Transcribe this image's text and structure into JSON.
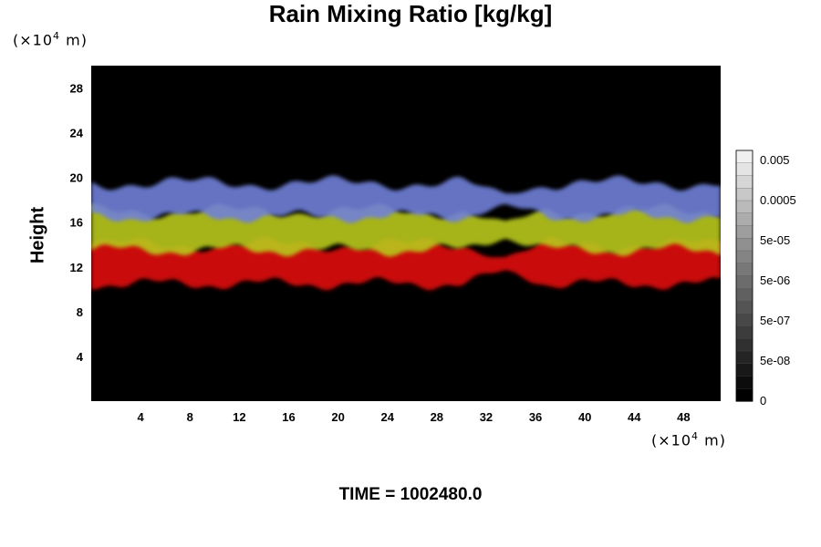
{
  "title": "Rain Mixing Ratio [kg/kg]",
  "y_unit": {
    "prefix": "(×10",
    "exp": "4",
    "suffix": " m)"
  },
  "x_unit": {
    "prefix": "(×10",
    "exp": "4",
    "suffix": " m)"
  },
  "ylabel": "Height",
  "time_label": "TIME = 1002480.0",
  "chart_data": {
    "type": "heatmap",
    "title": "Rain Mixing Ratio [kg/kg]",
    "xlabel": "",
    "ylabel": "Height",
    "x_unit": "×10^4 m",
    "y_unit": "×10^4 m",
    "xlim": [
      0,
      51
    ],
    "ylim": [
      0,
      30
    ],
    "x_ticks": [
      4,
      8,
      12,
      16,
      20,
      24,
      28,
      32,
      36,
      40,
      44,
      48
    ],
    "y_ticks": [
      4,
      8,
      12,
      16,
      20,
      24,
      28
    ],
    "background_color": "#000000",
    "colorbar": {
      "scale": "log",
      "labels": [
        "0.005",
        "0.0005",
        "5e-05",
        "5e-06",
        "5e-07",
        "5e-08",
        "0"
      ],
      "colors": [
        "#f0f0f0",
        "#e4e4e4",
        "#d6d6d6",
        "#c8c8c8",
        "#bababa",
        "#acacac",
        "#9e9e9e",
        "#909090",
        "#848484",
        "#787878",
        "#6c6c6c",
        "#606060",
        "#545454",
        "#484848",
        "#3c3c3c",
        "#303030",
        "#242424",
        "#181818",
        "#0c0c0c",
        "#000000"
      ]
    },
    "layers": [
      {
        "name": "upper",
        "color": "#6f80d8",
        "y_range": [
          16.5,
          19.5
        ]
      },
      {
        "name": "middle",
        "color": "#b8c81c",
        "y_range": [
          13.5,
          17.0
        ]
      },
      {
        "name": "lower",
        "color": "#e01010",
        "y_range": [
          10.5,
          14.0
        ]
      }
    ],
    "gap_x_range": [
      30,
      37
    ]
  }
}
